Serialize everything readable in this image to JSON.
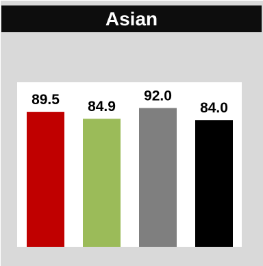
{
  "chart_data": {
    "type": "bar",
    "title": "Asian",
    "categories": [
      "",
      "",
      "",
      ""
    ],
    "values": [
      89.5,
      84.9,
      92.0,
      84.0
    ],
    "labels": [
      "89.5",
      "84.9",
      "92.0",
      "84.0"
    ],
    "colors": [
      "#c00000",
      "#9bbb59",
      "#7f7f7f",
      "#000000"
    ],
    "ylim": [
      0,
      100
    ],
    "grid": false,
    "legend": "none"
  }
}
